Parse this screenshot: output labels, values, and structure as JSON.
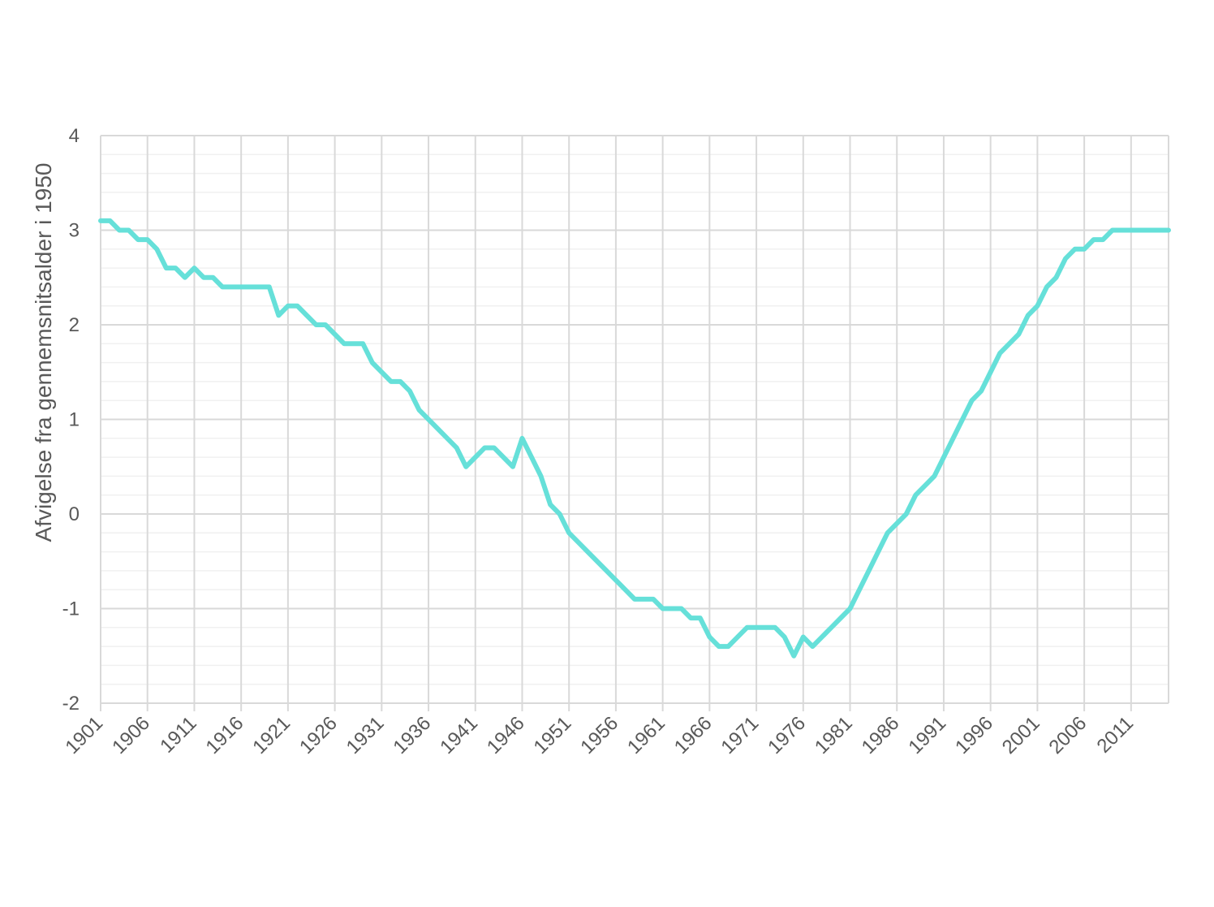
{
  "chart_data": {
    "type": "line",
    "title": "",
    "xlabel": "",
    "ylabel": "Afvigelse fra gennemsnitsalder i 1950",
    "xlim": [
      1901,
      2015
    ],
    "ylim": [
      -2,
      4
    ],
    "y_ticks": [
      -2,
      -1,
      0,
      1,
      2,
      3,
      4
    ],
    "x_tick_labels": [
      "1901",
      "1906",
      "1911",
      "1916",
      "1921",
      "1926",
      "1931",
      "1936",
      "1941",
      "1946",
      "1951",
      "1956",
      "1961",
      "1966",
      "1971",
      "1976",
      "1981",
      "1986",
      "1991",
      "1996",
      "2001",
      "2006",
      "2011"
    ],
    "grid": true,
    "legend": "none",
    "series": [
      {
        "color": "#66e0d9",
        "x": [
          1901,
          1902,
          1903,
          1904,
          1905,
          1906,
          1907,
          1908,
          1909,
          1910,
          1911,
          1912,
          1913,
          1914,
          1915,
          1916,
          1917,
          1918,
          1919,
          1920,
          1921,
          1922,
          1923,
          1924,
          1925,
          1926,
          1927,
          1928,
          1929,
          1930,
          1931,
          1932,
          1933,
          1934,
          1935,
          1936,
          1937,
          1938,
          1939,
          1940,
          1941,
          1942,
          1943,
          1944,
          1945,
          1946,
          1947,
          1948,
          1949,
          1950,
          1951,
          1952,
          1953,
          1954,
          1955,
          1956,
          1957,
          1958,
          1959,
          1960,
          1961,
          1962,
          1963,
          1964,
          1965,
          1966,
          1967,
          1968,
          1969,
          1970,
          1971,
          1972,
          1973,
          1974,
          1975,
          1976,
          1977,
          1978,
          1979,
          1980,
          1981,
          1982,
          1983,
          1984,
          1985,
          1986,
          1987,
          1988,
          1989,
          1990,
          1991,
          1992,
          1993,
          1994,
          1995,
          1996,
          1997,
          1998,
          1999,
          2000,
          2001,
          2002,
          2003,
          2004,
          2005,
          2006,
          2007,
          2008,
          2009,
          2010,
          2011,
          2012,
          2013,
          2014,
          2015
        ],
        "y": [
          3.1,
          3.1,
          3.0,
          3.0,
          2.9,
          2.9,
          2.8,
          2.6,
          2.6,
          2.5,
          2.6,
          2.5,
          2.5,
          2.4,
          2.4,
          2.4,
          2.4,
          2.4,
          2.4,
          2.1,
          2.2,
          2.2,
          2.1,
          2.0,
          2.0,
          1.9,
          1.8,
          1.8,
          1.8,
          1.6,
          1.5,
          1.4,
          1.4,
          1.3,
          1.1,
          1.0,
          0.9,
          0.8,
          0.7,
          0.5,
          0.6,
          0.7,
          0.7,
          0.6,
          0.5,
          0.8,
          0.6,
          0.4,
          0.1,
          0.0,
          -0.2,
          -0.3,
          -0.4,
          -0.5,
          -0.6,
          -0.7,
          -0.8,
          -0.9,
          -0.9,
          -0.9,
          -1.0,
          -1.0,
          -1.0,
          -1.1,
          -1.1,
          -1.3,
          -1.4,
          -1.4,
          -1.3,
          -1.2,
          -1.2,
          -1.2,
          -1.2,
          -1.3,
          -1.5,
          -1.3,
          -1.4,
          -1.3,
          -1.2,
          -1.1,
          -1.0,
          -0.8,
          -0.6,
          -0.4,
          -0.2,
          -0.1,
          0.0,
          0.2,
          0.3,
          0.4,
          0.6,
          0.8,
          1.0,
          1.2,
          1.3,
          1.5,
          1.7,
          1.8,
          1.9,
          2.1,
          2.2,
          2.4,
          2.5,
          2.7,
          2.8,
          2.8,
          2.9,
          2.9,
          3.0,
          3.0,
          3.0,
          3.0,
          3.0,
          3.0,
          3.0
        ]
      }
    ]
  }
}
